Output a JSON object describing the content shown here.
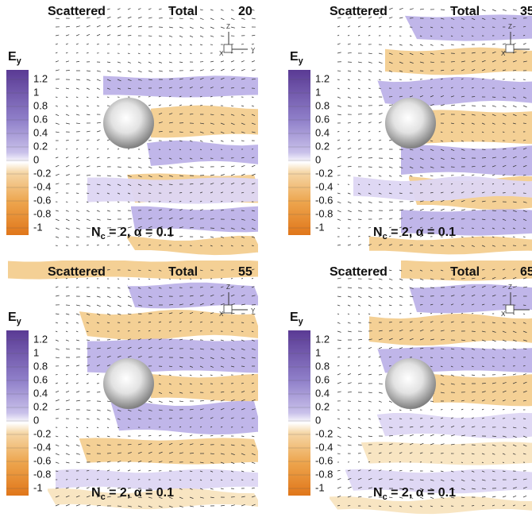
{
  "panels": [
    {
      "left_label": "Scattered",
      "right_label": "Total",
      "time": 20,
      "colorbar": {
        "label": "E",
        "label_subscript": "y",
        "ticks": [
          1.2,
          1,
          0.8,
          0.6,
          0.4,
          0.2,
          0,
          -0.2,
          -0.4,
          -0.6,
          -0.8,
          -1
        ]
      },
      "annotation": {
        "symbol": "N",
        "subscript": "c",
        "rest": " = 2, α = 0.1"
      },
      "axes": {
        "z": "Z",
        "y": "Y",
        "x": "X"
      }
    },
    {
      "left_label": "Scattered",
      "right_label": "Total",
      "time": 35,
      "colorbar": {
        "label": "E",
        "label_subscript": "y",
        "ticks": [
          1.2,
          1,
          0.8,
          0.6,
          0.4,
          0.2,
          0,
          -0.2,
          -0.4,
          -0.6,
          -0.8,
          -1
        ]
      },
      "annotation": {
        "symbol": "N",
        "subscript": "c",
        "rest": " = 2, α = 0.1"
      },
      "axes": {
        "z": "Z",
        "y": "Y",
        "x": "X"
      }
    },
    {
      "left_label": "Scattered",
      "right_label": "Total",
      "time": 55,
      "colorbar": {
        "label": "E",
        "label_subscript": "y",
        "ticks": [
          1.2,
          1,
          0.8,
          0.6,
          0.4,
          0.2,
          0,
          -0.2,
          -0.4,
          -0.6,
          -0.8,
          -1
        ]
      },
      "annotation": {
        "symbol": "N",
        "subscript": "c",
        "rest": " = 2, α = 0.1"
      },
      "axes": {
        "z": "Z",
        "y": "Y",
        "x": "X"
      }
    },
    {
      "left_label": "Scattered",
      "right_label": "Total",
      "time": 65,
      "colorbar": {
        "label": "E",
        "label_subscript": "y",
        "ticks": [
          1.2,
          1,
          0.8,
          0.6,
          0.4,
          0.2,
          0,
          -0.2,
          -0.4,
          -0.6,
          -0.8,
          -1
        ]
      },
      "annotation": {
        "symbol": "N",
        "subscript": "c",
        "rest": " = 2, α = 0.1"
      },
      "axes": {
        "z": "Z",
        "y": "Y",
        "x": "X"
      }
    }
  ]
}
